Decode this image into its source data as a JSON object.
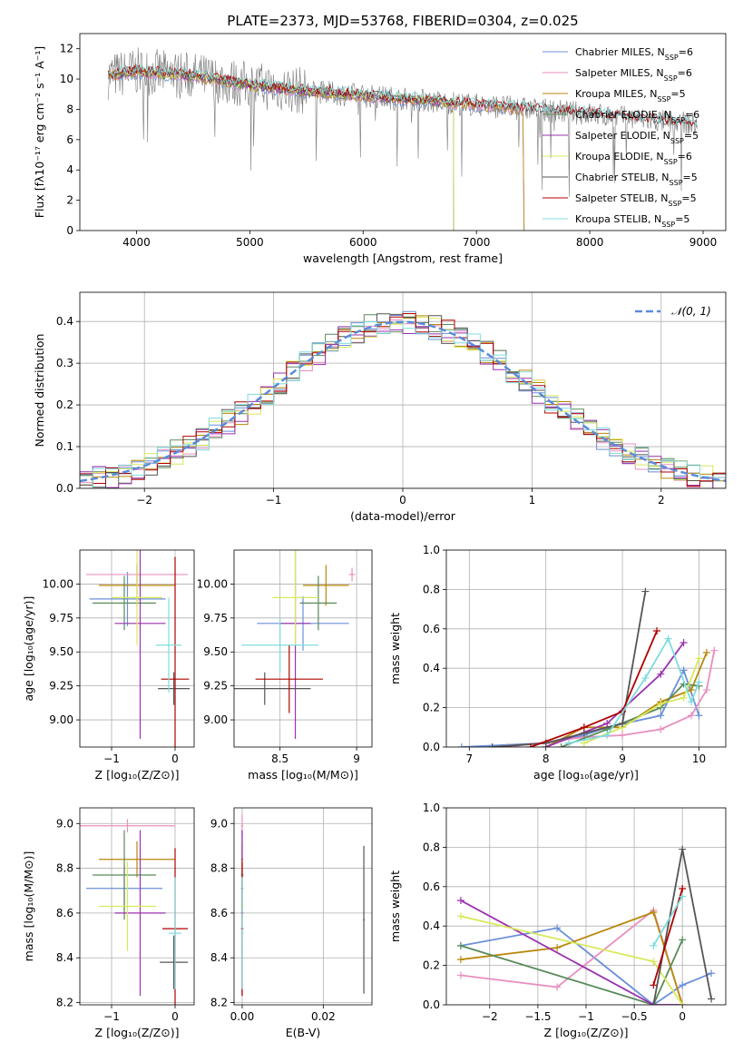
{
  "colors": {
    "series": [
      "#6b8fd8",
      "#e88fbf",
      "#b8860b",
      "#5a8a5a",
      "#9b30b0",
      "#d8e85a",
      "#555555",
      "#b00000",
      "#7fdcdc"
    ],
    "normal": "#5b8bd9"
  },
  "chart_data": [
    {
      "id": "spectrum",
      "type": "line",
      "title": "PLATE=2373, MJD=53768, FIBERID=0304, z=0.025",
      "xlabel": "wavelength [Angstrom, rest frame]",
      "ylabel": "Flux [fλ10⁻¹⁷ erg cm⁻² s⁻¹ A⁻¹]",
      "xlim": [
        3500,
        9200
      ],
      "ylim": [
        0,
        13
      ],
      "xticks": [
        4000,
        5000,
        6000,
        7000,
        8000,
        9000
      ],
      "yticks": [
        0,
        2,
        4,
        6,
        8,
        10,
        12
      ],
      "grid": false,
      "legend": "top-right",
      "series": [
        {
          "name": "Chabrier MILES, N_SSP=6",
          "ends": 7420
        },
        {
          "name": "Salpeter MILES, N_SSP=6",
          "ends": 7420
        },
        {
          "name": "Kroupa MILES, N_SSP=5",
          "ends": 7420
        },
        {
          "name": "Chabrier ELODIE, N_SSP=6",
          "ends": 6800
        },
        {
          "name": "Salpeter ELODIE, N_SSP=5",
          "ends": 6800
        },
        {
          "name": "Kroupa ELODIE, N_SSP=6",
          "ends": 6800
        },
        {
          "name": "Chabrier STELIB, N_SSP=5",
          "ends": 8950
        },
        {
          "name": "Salpeter STELIB, N_SSP=5",
          "ends": 8950
        },
        {
          "name": "Kroupa STELIB, N_SSP=5",
          "ends": 8950
        }
      ],
      "model_shape": {
        "x": [
          3750,
          4000,
          4500,
          5000,
          5500,
          6000,
          6500,
          7000,
          7500,
          8000,
          8500,
          8950
        ],
        "y": [
          10.2,
          10.5,
          10.2,
          9.6,
          9.2,
          8.9,
          8.6,
          8.3,
          8.0,
          7.7,
          7.3,
          7.0
        ]
      }
    },
    {
      "id": "residuals",
      "type": "histogram",
      "xlabel": "(data-model)/error",
      "ylabel": "Normed distribution",
      "xlim": [
        -2.5,
        2.5
      ],
      "ylim": [
        0,
        0.47
      ],
      "xticks": [
        -2,
        -1,
        0,
        1,
        2
      ],
      "yticks": [
        0.0,
        0.1,
        0.2,
        0.3,
        0.4
      ],
      "grid": true,
      "legend": "top-right",
      "normal_label": "𝒩(0, 1)",
      "bin_width": 0.1
    },
    {
      "id": "age-vs-Z",
      "type": "errorbar",
      "xlabel": "Z [log₁₀(Z/Z⊙)]",
      "ylabel": "age  [log₁₀(age/yr)]",
      "xlim": [
        -1.5,
        0.3
      ],
      "ylim": [
        8.8,
        10.25
      ],
      "xticks": [
        -1,
        0
      ],
      "yticks": [
        9.0,
        9.25,
        9.5,
        9.75,
        10.0
      ],
      "grid": true,
      "points": [
        {
          "x": -0.75,
          "xerr": 0.6,
          "y": 9.89,
          "yerr": 0.2
        },
        {
          "x": -0.6,
          "xerr": 0.8,
          "y": 10.07,
          "yerr": 0.08
        },
        {
          "x": -0.6,
          "xerr": 0.6,
          "y": 9.99,
          "yerr": 0.15
        },
        {
          "x": -0.8,
          "xerr": 0.5,
          "y": 9.86,
          "yerr": 0.2
        },
        {
          "x": -0.55,
          "xerr": 0.4,
          "y": 9.71,
          "yerr": 0.85
        },
        {
          "x": -0.6,
          "xerr": 0.4,
          "y": 9.9,
          "yerr": 0.35
        },
        {
          "x": -0.02,
          "xerr": 0.25,
          "y": 9.23,
          "yerr": 0.12
        },
        {
          "x": 0.0,
          "xerr": 0.22,
          "y": 9.3,
          "yerr": 0.9
        },
        {
          "x": -0.1,
          "xerr": 0.2,
          "y": 9.55,
          "yerr": 0.35
        }
      ]
    },
    {
      "id": "age-vs-mass",
      "type": "errorbar",
      "xlabel": "mass [log₁₀(M/M⊙)]",
      "ylabel": "",
      "xlim": [
        8.2,
        9.1
      ],
      "ylim": [
        8.8,
        10.25
      ],
      "xticks": [
        8.5,
        9.0
      ],
      "yticks": [
        9.0,
        9.25,
        9.5,
        9.75,
        10.0
      ],
      "grid": true,
      "points": [
        {
          "x": 8.65,
          "xerr": 0.3,
          "y": 9.71,
          "yerr": 0.2
        },
        {
          "x": 8.97,
          "xerr": 0.02,
          "y": 10.07,
          "yerr": 0.05
        },
        {
          "x": 8.8,
          "xerr": 0.15,
          "y": 9.99,
          "yerr": 0.15
        },
        {
          "x": 8.75,
          "xerr": 0.12,
          "y": 9.86,
          "yerr": 0.2
        },
        {
          "x": 8.6,
          "xerr": 0.1,
          "y": 9.71,
          "yerr": 0.85
        },
        {
          "x": 8.6,
          "xerr": 0.15,
          "y": 9.9,
          "yerr": 0.35
        },
        {
          "x": 8.4,
          "xerr": 0.3,
          "y": 9.23,
          "yerr": 0.12
        },
        {
          "x": 8.56,
          "xerr": 0.22,
          "y": 9.3,
          "yerr": 0.25
        },
        {
          "x": 8.5,
          "xerr": 0.25,
          "y": 9.55,
          "yerr": 0.2
        }
      ]
    },
    {
      "id": "massweight-vs-age",
      "type": "line",
      "xlabel": "age  [log₁₀(age/yr)]",
      "ylabel": "mass weight",
      "xlim": [
        6.7,
        10.35
      ],
      "ylim": [
        0.0,
        1.0
      ],
      "xticks": [
        7,
        8,
        9,
        10
      ],
      "yticks": [
        0.0,
        0.2,
        0.4,
        0.6,
        0.8,
        1.0
      ],
      "grid": true,
      "series": [
        {
          "x": [
            6.9,
            8.0,
            8.5,
            8.8,
            9.5,
            9.8,
            10.0
          ],
          "y": [
            0.0,
            0.02,
            0.06,
            0.1,
            0.16,
            0.39,
            0.16
          ]
        },
        {
          "x": [
            7.5,
            8.5,
            9.0,
            9.5,
            9.9,
            10.1,
            10.2
          ],
          "y": [
            0.0,
            0.05,
            0.06,
            0.09,
            0.16,
            0.29,
            0.49
          ]
        },
        {
          "x": [
            8.0,
            8.5,
            9.0,
            9.5,
            9.9,
            10.1
          ],
          "y": [
            0.0,
            0.1,
            0.1,
            0.23,
            0.29,
            0.48
          ]
        },
        {
          "x": [
            8.2,
            8.8,
            9.5,
            9.8,
            10.0
          ],
          "y": [
            0.0,
            0.09,
            0.2,
            0.32,
            0.31
          ]
        },
        {
          "x": [
            8.0,
            8.8,
            9.5,
            9.8
          ],
          "y": [
            0.0,
            0.12,
            0.37,
            0.53
          ]
        },
        {
          "x": [
            8.5,
            9.0,
            9.5,
            9.8,
            10.0
          ],
          "y": [
            0.02,
            0.1,
            0.22,
            0.25,
            0.45
          ]
        },
        {
          "x": [
            7.3,
            8.0,
            8.5,
            9.0,
            9.3
          ],
          "y": [
            0.0,
            0.02,
            0.07,
            0.12,
            0.79
          ]
        },
        {
          "x": [
            7.8,
            8.5,
            9.0,
            9.45
          ],
          "y": [
            0.0,
            0.1,
            0.18,
            0.59
          ]
        },
        {
          "x": [
            8.3,
            8.8,
            9.3,
            9.6,
            9.9,
            10.0
          ],
          "y": [
            0.02,
            0.06,
            0.35,
            0.55,
            0.23,
            0.33
          ]
        }
      ]
    },
    {
      "id": "mass-vs-Z",
      "type": "errorbar",
      "xlabel": "Z [log₁₀(Z/Z⊙)]",
      "ylabel": "mass [log₁₀(M/M⊙)]",
      "xlim": [
        -1.5,
        0.3
      ],
      "ylim": [
        8.19,
        9.07
      ],
      "xticks": [
        -1,
        0
      ],
      "yticks": [
        8.2,
        8.4,
        8.6,
        8.8,
        9.0
      ],
      "grid": true,
      "points": [
        {
          "x": -0.8,
          "xerr": 0.6,
          "y": 8.71,
          "yerr": 0.1
        },
        {
          "x": -0.75,
          "xerr": 0.75,
          "y": 8.99,
          "yerr": 0.03
        },
        {
          "x": -0.6,
          "xerr": 0.6,
          "y": 8.84,
          "yerr": 0.08
        },
        {
          "x": -0.8,
          "xerr": 0.5,
          "y": 8.77,
          "yerr": 0.2
        },
        {
          "x": -0.55,
          "xerr": 0.4,
          "y": 8.6,
          "yerr": 0.37
        },
        {
          "x": -0.75,
          "xerr": 0.45,
          "y": 8.63,
          "yerr": 0.2
        },
        {
          "x": -0.02,
          "xerr": 0.22,
          "y": 8.38,
          "yerr": 0.12
        },
        {
          "x": 0.0,
          "xerr": 0.2,
          "y": 8.53,
          "yerr": 0.36
        },
        {
          "x": 0.0,
          "xerr": 0.1,
          "y": 8.51,
          "yerr": 0.25
        }
      ]
    },
    {
      "id": "mass-vs-EBV",
      "type": "errorbar",
      "xlabel": "E(B-V)",
      "ylabel": "",
      "xlim": [
        -0.002,
        0.032
      ],
      "ylim": [
        8.19,
        9.07
      ],
      "xticks": [
        0.0,
        0.02
      ],
      "xticklabels": [
        "0.00",
        "0.02"
      ],
      "yticks": [
        8.2,
        8.4,
        8.6,
        8.8,
        9.0
      ],
      "grid": true,
      "points": [
        {
          "x": 0.0,
          "xerr": 0.0003,
          "y": 8.71,
          "yerr": 0.1
        },
        {
          "x": 0.0,
          "xerr": 0.0003,
          "y": 8.99,
          "yerr": 0.05
        },
        {
          "x": 0.0,
          "xerr": 0.0003,
          "y": 8.84,
          "yerr": 0.08
        },
        {
          "x": 0.0,
          "xerr": 0.0003,
          "y": 8.77,
          "yerr": 0.2
        },
        {
          "x": 0.0,
          "xerr": 0.0003,
          "y": 8.6,
          "yerr": 0.37
        },
        {
          "x": 0.0,
          "xerr": 0.0003,
          "y": 8.63,
          "yerr": 0.2
        },
        {
          "x": 0.03,
          "xerr": 0.0002,
          "y": 8.57,
          "yerr": 0.33
        },
        {
          "x": 0.0,
          "xerr": 0.0003,
          "y": 8.53,
          "yerr": 0.3
        },
        {
          "x": 0.0,
          "xerr": 0.0003,
          "y": 8.51,
          "yerr": 0.25
        }
      ]
    },
    {
      "id": "massweight-vs-Z",
      "type": "line",
      "xlabel": "Z [log₁₀(Z/Z⊙)]",
      "ylabel": "mass weight",
      "xlim": [
        -2.45,
        0.45
      ],
      "ylim": [
        0.0,
        1.0
      ],
      "xticks": [
        -2.0,
        -1.5,
        -1.0,
        -0.5,
        0.0
      ],
      "yticks": [
        0.0,
        0.2,
        0.4,
        0.6,
        0.8,
        1.0
      ],
      "grid": true,
      "series": [
        {
          "x": [
            -2.3,
            -1.3,
            -0.3,
            0.0,
            0.3
          ],
          "y": [
            0.3,
            0.39,
            0.0,
            0.1,
            0.16
          ]
        },
        {
          "x": [
            -2.3,
            -1.3,
            -0.3,
            0.0
          ],
          "y": [
            0.15,
            0.09,
            0.48,
            0.0
          ]
        },
        {
          "x": [
            -2.3,
            -1.3,
            -0.3,
            0.0
          ],
          "y": [
            0.23,
            0.29,
            0.47,
            0.0
          ]
        },
        {
          "x": [
            -2.3,
            -0.3,
            0.0
          ],
          "y": [
            0.3,
            0.0,
            0.33
          ]
        },
        {
          "x": [
            -2.3,
            -0.3,
            0.0
          ],
          "y": [
            0.53,
            0.0,
            0.0
          ]
        },
        {
          "x": [
            -2.3,
            -0.3,
            0.0
          ],
          "y": [
            0.45,
            0.22,
            0.0
          ]
        },
        {
          "x": [
            -0.3,
            0.0,
            0.3
          ],
          "y": [
            0.0,
            0.79,
            0.03
          ]
        },
        {
          "x": [
            -0.3,
            0.0
          ],
          "y": [
            0.1,
            0.59
          ]
        },
        {
          "x": [
            -0.3,
            0.0
          ],
          "y": [
            0.3,
            0.55
          ]
        }
      ]
    }
  ]
}
